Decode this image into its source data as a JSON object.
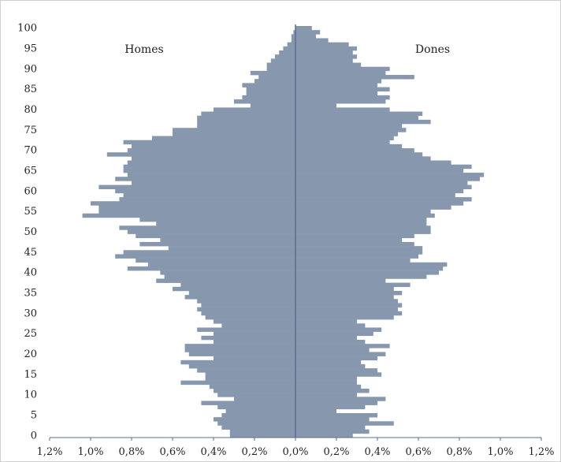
{
  "chart_data": {
    "type": "bar",
    "orientation": "horizontal-pyramid",
    "labels": {
      "left": "Homes",
      "right": "Dones"
    },
    "y_ticks": [
      0,
      5,
      10,
      15,
      20,
      25,
      30,
      35,
      40,
      45,
      50,
      55,
      60,
      65,
      70,
      75,
      80,
      85,
      90,
      95,
      100
    ],
    "x_ticks": [
      "1,2%",
      "1,0%",
      "0,8%",
      "0,6%",
      "0,4%",
      "0,2%",
      "0,0%",
      "0,2%",
      "0,4%",
      "0,6%",
      "0,8%",
      "1,0%",
      "1,2%"
    ],
    "xlim": [
      -1.2,
      1.2
    ],
    "ylim": [
      0,
      100
    ],
    "ages": [
      0,
      1,
      2,
      3,
      4,
      5,
      6,
      7,
      8,
      9,
      10,
      11,
      12,
      13,
      14,
      15,
      16,
      17,
      18,
      19,
      20,
      21,
      22,
      23,
      24,
      25,
      26,
      27,
      28,
      29,
      30,
      31,
      32,
      33,
      34,
      35,
      36,
      37,
      38,
      39,
      40,
      41,
      42,
      43,
      44,
      45,
      46,
      47,
      48,
      49,
      50,
      51,
      52,
      53,
      54,
      55,
      56,
      57,
      58,
      59,
      60,
      61,
      62,
      63,
      64,
      65,
      66,
      67,
      68,
      69,
      70,
      71,
      72,
      73,
      74,
      75,
      76,
      77,
      78,
      79,
      80,
      81,
      82,
      83,
      84,
      85,
      86,
      87,
      88,
      89,
      90,
      91,
      92,
      93,
      94,
      95,
      96,
      97,
      98,
      99,
      100
    ],
    "series": [
      {
        "name": "Homes",
        "side": "left",
        "values": [
          0.32,
          0.32,
          0.36,
          0.38,
          0.4,
          0.36,
          0.34,
          0.38,
          0.46,
          0.3,
          0.38,
          0.4,
          0.42,
          0.56,
          0.44,
          0.44,
          0.48,
          0.52,
          0.56,
          0.4,
          0.52,
          0.54,
          0.54,
          0.4,
          0.46,
          0.4,
          0.48,
          0.36,
          0.4,
          0.44,
          0.46,
          0.48,
          0.46,
          0.48,
          0.54,
          0.52,
          0.6,
          0.56,
          0.68,
          0.64,
          0.66,
          0.82,
          0.72,
          0.78,
          0.88,
          0.84,
          0.62,
          0.76,
          0.66,
          0.78,
          0.82,
          0.86,
          0.68,
          0.76,
          1.04,
          0.96,
          0.96,
          1.0,
          0.86,
          0.84,
          0.88,
          0.96,
          0.8,
          0.88,
          0.82,
          0.84,
          0.84,
          0.82,
          0.8,
          0.92,
          0.82,
          0.8,
          0.84,
          0.7,
          0.6,
          0.6,
          0.48,
          0.48,
          0.48,
          0.46,
          0.4,
          0.22,
          0.3,
          0.26,
          0.24,
          0.24,
          0.26,
          0.2,
          0.18,
          0.22,
          0.14,
          0.14,
          0.12,
          0.1,
          0.08,
          0.06,
          0.04,
          0.02,
          0.02,
          0.01,
          0.0
        ]
      },
      {
        "name": "Dones",
        "side": "right",
        "values": [
          0.28,
          0.36,
          0.34,
          0.48,
          0.36,
          0.4,
          0.2,
          0.34,
          0.4,
          0.44,
          0.3,
          0.36,
          0.32,
          0.3,
          0.3,
          0.42,
          0.4,
          0.34,
          0.32,
          0.4,
          0.44,
          0.36,
          0.46,
          0.34,
          0.3,
          0.38,
          0.42,
          0.34,
          0.3,
          0.48,
          0.52,
          0.5,
          0.52,
          0.5,
          0.48,
          0.52,
          0.48,
          0.56,
          0.44,
          0.64,
          0.7,
          0.72,
          0.74,
          0.56,
          0.6,
          0.62,
          0.62,
          0.58,
          0.52,
          0.58,
          0.66,
          0.66,
          0.64,
          0.64,
          0.68,
          0.66,
          0.76,
          0.82,
          0.86,
          0.78,
          0.82,
          0.86,
          0.84,
          0.9,
          0.92,
          0.82,
          0.86,
          0.76,
          0.66,
          0.62,
          0.58,
          0.52,
          0.46,
          0.48,
          0.5,
          0.54,
          0.52,
          0.66,
          0.6,
          0.62,
          0.46,
          0.2,
          0.44,
          0.46,
          0.4,
          0.46,
          0.4,
          0.42,
          0.58,
          0.44,
          0.46,
          0.32,
          0.28,
          0.3,
          0.28,
          0.3,
          0.26,
          0.16,
          0.1,
          0.12,
          0.08
        ]
      }
    ],
    "colors": {
      "bar": "#8798ae",
      "axis": "#5b6e8a",
      "tick_text": "#222222"
    },
    "grid": false,
    "legend": "none"
  }
}
